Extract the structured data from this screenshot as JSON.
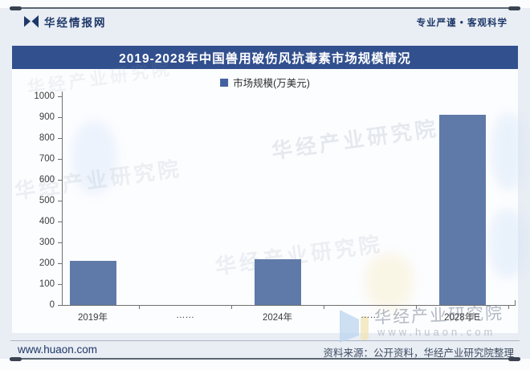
{
  "header": {
    "brand": "华经情报网",
    "tagline": "专业严谨 • 客观科学"
  },
  "title": "2019-2028年中国兽用破伤风抗毒素市场规模情况",
  "legend": {
    "label": "市场规模(万美元)"
  },
  "chart_data": {
    "type": "bar",
    "title": "2019-2028年中国兽用破伤风抗毒素市场规模情况",
    "series_name": "市场规模(万美元)",
    "categories": [
      "2019年",
      "……",
      "2024年",
      "……",
      "2028年E"
    ],
    "values": [
      210,
      null,
      220,
      null,
      910
    ],
    "ylim": [
      0,
      1000
    ],
    "ytick_step": 100,
    "yticks": [
      0,
      100,
      200,
      300,
      400,
      500,
      600,
      700,
      800,
      900,
      1000
    ],
    "grid": false,
    "legend_position": "top"
  },
  "colors": {
    "title_bar_bg": "#32508e",
    "bar_fill": "#5f7aa8",
    "legend_marker": "#44619f",
    "brand_navy": "#1d3868"
  },
  "watermarks": {
    "diagonal": "华经产业研究院",
    "corner_title": "华经产业研究院",
    "corner_url": "www.huaon.com"
  },
  "footer": {
    "site": "www.huaon.com",
    "source": "资料来源：公开资料，华经产业研究院整理"
  }
}
